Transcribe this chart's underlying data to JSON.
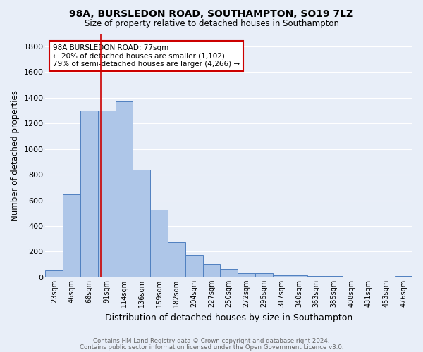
{
  "title1": "98A, BURSLEDON ROAD, SOUTHAMPTON, SO19 7LZ",
  "title2": "Size of property relative to detached houses in Southampton",
  "xlabel": "Distribution of detached houses by size in Southampton",
  "ylabel": "Number of detached properties",
  "footer1": "Contains HM Land Registry data © Crown copyright and database right 2024.",
  "footer2": "Contains public sector information licensed under the Open Government Licence v3.0.",
  "categories": [
    "23sqm",
    "46sqm",
    "68sqm",
    "91sqm",
    "114sqm",
    "136sqm",
    "159sqm",
    "182sqm",
    "204sqm",
    "227sqm",
    "250sqm",
    "272sqm",
    "295sqm",
    "317sqm",
    "340sqm",
    "363sqm",
    "385sqm",
    "408sqm",
    "431sqm",
    "453sqm",
    "476sqm"
  ],
  "values": [
    55,
    645,
    1300,
    1300,
    1370,
    840,
    525,
    275,
    175,
    105,
    65,
    35,
    30,
    15,
    15,
    10,
    10,
    0,
    0,
    0,
    10
  ],
  "bar_color": "#aec6e8",
  "bar_edge_color": "#5080c0",
  "bg_color": "#e8eef8",
  "grid_color": "#ffffff",
  "red_line_x": 2.65,
  "annotation_line1": "98A BURSLEDON ROAD: 77sqm",
  "annotation_line2": "← 20% of detached houses are smaller (1,102)",
  "annotation_line3": "79% of semi-detached houses are larger (4,266) →",
  "annotation_box_color": "#ffffff",
  "annotation_border_color": "#cc0000",
  "ylim": [
    0,
    1900
  ],
  "yticks": [
    0,
    200,
    400,
    600,
    800,
    1000,
    1200,
    1400,
    1600,
    1800
  ]
}
